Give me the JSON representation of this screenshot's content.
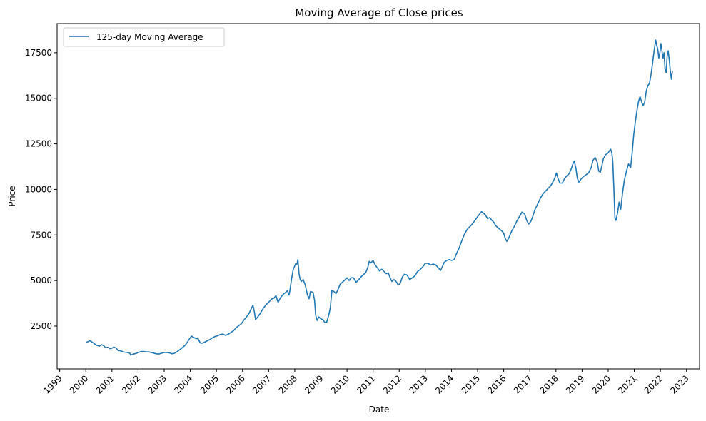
{
  "chart_data": {
    "type": "line",
    "title": "Moving Average of Close prices",
    "xlabel": "Date",
    "ylabel": "Price",
    "x_ticks": [
      "1999",
      "2000",
      "2001",
      "2002",
      "2003",
      "2004",
      "2005",
      "2006",
      "2007",
      "2008",
      "2009",
      "2010",
      "2011",
      "2012",
      "2013",
      "2014",
      "2015",
      "2016",
      "2017",
      "2018",
      "2019",
      "2020",
      "2021",
      "2022",
      "2023"
    ],
    "y_ticks": [
      2500,
      5000,
      7500,
      10000,
      12500,
      15000,
      17500
    ],
    "xlim": [
      1998.9,
      2023.5
    ],
    "ylim": [
      150,
      19100
    ],
    "grid": false,
    "legend_position": "top-left",
    "series": [
      {
        "name": "125-day Moving Average",
        "color": "#1f77b4",
        "points": [
          [
            2000.0,
            1620
          ],
          [
            2000.08,
            1640
          ],
          [
            2000.15,
            1700
          ],
          [
            2000.22,
            1640
          ],
          [
            2000.3,
            1560
          ],
          [
            2000.38,
            1470
          ],
          [
            2000.45,
            1430
          ],
          [
            2000.52,
            1400
          ],
          [
            2000.6,
            1480
          ],
          [
            2000.68,
            1430
          ],
          [
            2000.76,
            1310
          ],
          [
            2000.84,
            1340
          ],
          [
            2000.92,
            1260
          ],
          [
            2001.0,
            1290
          ],
          [
            2001.08,
            1350
          ],
          [
            2001.16,
            1290
          ],
          [
            2001.24,
            1160
          ],
          [
            2001.32,
            1150
          ],
          [
            2001.4,
            1100
          ],
          [
            2001.48,
            1070
          ],
          [
            2001.58,
            1060
          ],
          [
            2001.68,
            1020
          ],
          [
            2001.72,
            900
          ],
          [
            2001.8,
            960
          ],
          [
            2001.9,
            990
          ],
          [
            2002.0,
            1040
          ],
          [
            2002.1,
            1100
          ],
          [
            2002.2,
            1110
          ],
          [
            2002.3,
            1090
          ],
          [
            2002.4,
            1080
          ],
          [
            2002.5,
            1060
          ],
          [
            2002.6,
            1020
          ],
          [
            2002.7,
            980
          ],
          [
            2002.8,
            970
          ],
          [
            2002.9,
            1010
          ],
          [
            2003.0,
            1050
          ],
          [
            2003.1,
            1060
          ],
          [
            2003.2,
            1030
          ],
          [
            2003.3,
            980
          ],
          [
            2003.4,
            1010
          ],
          [
            2003.5,
            1100
          ],
          [
            2003.6,
            1210
          ],
          [
            2003.7,
            1320
          ],
          [
            2003.8,
            1450
          ],
          [
            2003.9,
            1640
          ],
          [
            2004.0,
            1870
          ],
          [
            2004.05,
            1950
          ],
          [
            2004.1,
            1900
          ],
          [
            2004.2,
            1830
          ],
          [
            2004.3,
            1800
          ],
          [
            2004.38,
            1580
          ],
          [
            2004.45,
            1560
          ],
          [
            2004.55,
            1620
          ],
          [
            2004.65,
            1700
          ],
          [
            2004.75,
            1760
          ],
          [
            2004.85,
            1860
          ],
          [
            2004.95,
            1930
          ],
          [
            2005.05,
            1970
          ],
          [
            2005.15,
            2040
          ],
          [
            2005.25,
            2060
          ],
          [
            2005.35,
            1990
          ],
          [
            2005.45,
            2050
          ],
          [
            2005.55,
            2150
          ],
          [
            2005.65,
            2240
          ],
          [
            2005.75,
            2400
          ],
          [
            2005.85,
            2520
          ],
          [
            2005.95,
            2620
          ],
          [
            2006.05,
            2830
          ],
          [
            2006.15,
            3000
          ],
          [
            2006.25,
            3200
          ],
          [
            2006.35,
            3500
          ],
          [
            2006.4,
            3650
          ],
          [
            2006.45,
            3300
          ],
          [
            2006.5,
            2860
          ],
          [
            2006.58,
            3000
          ],
          [
            2006.68,
            3200
          ],
          [
            2006.8,
            3490
          ],
          [
            2006.92,
            3700
          ],
          [
            2007.0,
            3800
          ],
          [
            2007.1,
            3980
          ],
          [
            2007.2,
            4030
          ],
          [
            2007.28,
            4170
          ],
          [
            2007.36,
            3800
          ],
          [
            2007.45,
            4050
          ],
          [
            2007.55,
            4230
          ],
          [
            2007.65,
            4350
          ],
          [
            2007.72,
            4440
          ],
          [
            2007.78,
            4200
          ],
          [
            2007.82,
            4500
          ],
          [
            2007.88,
            5100
          ],
          [
            2007.94,
            5600
          ],
          [
            2008.0,
            5800
          ],
          [
            2008.04,
            5950
          ],
          [
            2008.08,
            5880
          ],
          [
            2008.12,
            6150
          ],
          [
            2008.16,
            5400
          ],
          [
            2008.2,
            5100
          ],
          [
            2008.25,
            4950
          ],
          [
            2008.32,
            5060
          ],
          [
            2008.4,
            4750
          ],
          [
            2008.48,
            4230
          ],
          [
            2008.55,
            4000
          ],
          [
            2008.6,
            4400
          ],
          [
            2008.7,
            4350
          ],
          [
            2008.76,
            3900
          ],
          [
            2008.8,
            3100
          ],
          [
            2008.86,
            2800
          ],
          [
            2008.92,
            3000
          ],
          [
            2009.0,
            2900
          ],
          [
            2009.08,
            2850
          ],
          [
            2009.15,
            2700
          ],
          [
            2009.22,
            2720
          ],
          [
            2009.3,
            3100
          ],
          [
            2009.36,
            3500
          ],
          [
            2009.42,
            4450
          ],
          [
            2009.5,
            4400
          ],
          [
            2009.58,
            4280
          ],
          [
            2009.66,
            4530
          ],
          [
            2009.74,
            4800
          ],
          [
            2009.82,
            4900
          ],
          [
            2009.9,
            5000
          ],
          [
            2010.0,
            5150
          ],
          [
            2010.08,
            5000
          ],
          [
            2010.16,
            5150
          ],
          [
            2010.25,
            5150
          ],
          [
            2010.35,
            4900
          ],
          [
            2010.45,
            5050
          ],
          [
            2010.55,
            5220
          ],
          [
            2010.65,
            5350
          ],
          [
            2010.72,
            5440
          ],
          [
            2010.8,
            5740
          ],
          [
            2010.85,
            6050
          ],
          [
            2010.92,
            5980
          ],
          [
            2011.0,
            6100
          ],
          [
            2011.08,
            5850
          ],
          [
            2011.16,
            5700
          ],
          [
            2011.25,
            5520
          ],
          [
            2011.33,
            5620
          ],
          [
            2011.42,
            5500
          ],
          [
            2011.5,
            5370
          ],
          [
            2011.58,
            5420
          ],
          [
            2011.65,
            5150
          ],
          [
            2011.72,
            4950
          ],
          [
            2011.8,
            5050
          ],
          [
            2011.88,
            4950
          ],
          [
            2011.96,
            4750
          ],
          [
            2012.04,
            4850
          ],
          [
            2012.12,
            5200
          ],
          [
            2012.2,
            5350
          ],
          [
            2012.3,
            5300
          ],
          [
            2012.4,
            5050
          ],
          [
            2012.5,
            5150
          ],
          [
            2012.6,
            5250
          ],
          [
            2012.7,
            5500
          ],
          [
            2012.8,
            5600
          ],
          [
            2012.9,
            5750
          ],
          [
            2013.0,
            5950
          ],
          [
            2013.1,
            5950
          ],
          [
            2013.2,
            5850
          ],
          [
            2013.3,
            5900
          ],
          [
            2013.4,
            5850
          ],
          [
            2013.5,
            5700
          ],
          [
            2013.58,
            5550
          ],
          [
            2013.65,
            5750
          ],
          [
            2013.72,
            6000
          ],
          [
            2013.82,
            6100
          ],
          [
            2013.92,
            6150
          ],
          [
            2014.0,
            6100
          ],
          [
            2014.1,
            6150
          ],
          [
            2014.2,
            6500
          ],
          [
            2014.3,
            6800
          ],
          [
            2014.4,
            7200
          ],
          [
            2014.5,
            7550
          ],
          [
            2014.6,
            7800
          ],
          [
            2014.7,
            7950
          ],
          [
            2014.8,
            8100
          ],
          [
            2014.9,
            8300
          ],
          [
            2015.0,
            8500
          ],
          [
            2015.08,
            8650
          ],
          [
            2015.15,
            8780
          ],
          [
            2015.22,
            8700
          ],
          [
            2015.3,
            8600
          ],
          [
            2015.38,
            8400
          ],
          [
            2015.46,
            8450
          ],
          [
            2015.55,
            8300
          ],
          [
            2015.62,
            8200
          ],
          [
            2015.7,
            8000
          ],
          [
            2015.78,
            7900
          ],
          [
            2015.86,
            7800
          ],
          [
            2015.94,
            7700
          ],
          [
            2016.0,
            7600
          ],
          [
            2016.06,
            7300
          ],
          [
            2016.12,
            7150
          ],
          [
            2016.2,
            7350
          ],
          [
            2016.3,
            7700
          ],
          [
            2016.4,
            7950
          ],
          [
            2016.5,
            8250
          ],
          [
            2016.6,
            8500
          ],
          [
            2016.7,
            8750
          ],
          [
            2016.8,
            8650
          ],
          [
            2016.88,
            8300
          ],
          [
            2016.96,
            8100
          ],
          [
            2017.04,
            8250
          ],
          [
            2017.12,
            8550
          ],
          [
            2017.2,
            8900
          ],
          [
            2017.3,
            9200
          ],
          [
            2017.4,
            9500
          ],
          [
            2017.5,
            9750
          ],
          [
            2017.6,
            9900
          ],
          [
            2017.7,
            10050
          ],
          [
            2017.8,
            10200
          ],
          [
            2017.88,
            10400
          ],
          [
            2017.95,
            10600
          ],
          [
            2018.02,
            10900
          ],
          [
            2018.08,
            10600
          ],
          [
            2018.15,
            10350
          ],
          [
            2018.25,
            10350
          ],
          [
            2018.33,
            10600
          ],
          [
            2018.42,
            10750
          ],
          [
            2018.5,
            10850
          ],
          [
            2018.58,
            11100
          ],
          [
            2018.65,
            11400
          ],
          [
            2018.7,
            11550
          ],
          [
            2018.76,
            11200
          ],
          [
            2018.82,
            10600
          ],
          [
            2018.88,
            10400
          ],
          [
            2018.95,
            10550
          ],
          [
            2019.05,
            10700
          ],
          [
            2019.15,
            10800
          ],
          [
            2019.25,
            10900
          ],
          [
            2019.35,
            11200
          ],
          [
            2019.42,
            11600
          ],
          [
            2019.5,
            11750
          ],
          [
            2019.58,
            11500
          ],
          [
            2019.64,
            11000
          ],
          [
            2019.7,
            10950
          ],
          [
            2019.76,
            11300
          ],
          [
            2019.82,
            11700
          ],
          [
            2019.9,
            11900
          ],
          [
            2020.0,
            12000
          ],
          [
            2020.06,
            12150
          ],
          [
            2020.1,
            12200
          ],
          [
            2020.14,
            12000
          ],
          [
            2020.18,
            11500
          ],
          [
            2020.22,
            10000
          ],
          [
            2020.26,
            8400
          ],
          [
            2020.3,
            8300
          ],
          [
            2020.36,
            8700
          ],
          [
            2020.42,
            9300
          ],
          [
            2020.48,
            8900
          ],
          [
            2020.55,
            9800
          ],
          [
            2020.62,
            10500
          ],
          [
            2020.7,
            11000
          ],
          [
            2020.78,
            11400
          ],
          [
            2020.86,
            11200
          ],
          [
            2020.92,
            12000
          ],
          [
            2020.98,
            13000
          ],
          [
            2021.04,
            13700
          ],
          [
            2021.1,
            14300
          ],
          [
            2021.16,
            14800
          ],
          [
            2021.22,
            15100
          ],
          [
            2021.28,
            14800
          ],
          [
            2021.34,
            14600
          ],
          [
            2021.4,
            14800
          ],
          [
            2021.46,
            15400
          ],
          [
            2021.52,
            15700
          ],
          [
            2021.58,
            15800
          ],
          [
            2021.64,
            16300
          ],
          [
            2021.7,
            16900
          ],
          [
            2021.76,
            17600
          ],
          [
            2021.82,
            18200
          ],
          [
            2021.86,
            17900
          ],
          [
            2021.9,
            17700
          ],
          [
            2021.94,
            17200
          ],
          [
            2021.98,
            17500
          ],
          [
            2022.02,
            18000
          ],
          [
            2022.06,
            17600
          ],
          [
            2022.1,
            17200
          ],
          [
            2022.14,
            17500
          ],
          [
            2022.18,
            16600
          ],
          [
            2022.22,
            16400
          ],
          [
            2022.26,
            17300
          ],
          [
            2022.3,
            17600
          ],
          [
            2022.34,
            17100
          ],
          [
            2022.38,
            16500
          ],
          [
            2022.42,
            16050
          ],
          [
            2022.46,
            16500
          ]
        ]
      }
    ]
  }
}
